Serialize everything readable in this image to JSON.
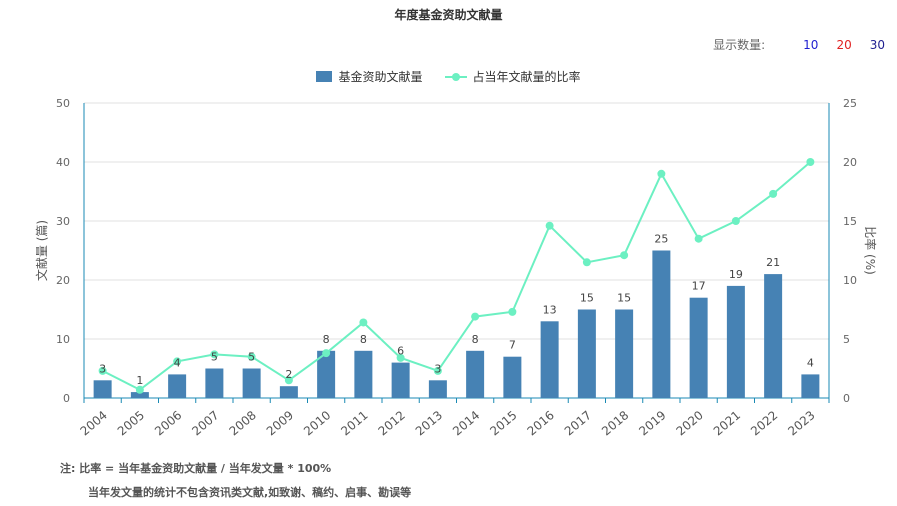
{
  "title": "年度基金资助文献量",
  "count_selector": {
    "label": "显示数量:",
    "options": [
      {
        "label": "10",
        "color": "#1f1fd0"
      },
      {
        "label": "20",
        "color": "#e02020"
      },
      {
        "label": "30",
        "color": "#1f1f90"
      }
    ]
  },
  "legend": {
    "bar_label": "基金资助文献量",
    "line_label": "占当年文献量的比率"
  },
  "colors": {
    "bar": "#4682b4",
    "line": "#6cf0c2",
    "axis": "#1a8ab4",
    "grid": "#e0e0e0"
  },
  "notes": {
    "line1": "注:  比率 = 当年基金资助文献量 / 当年发文量 * 100%",
    "line2": "当年发文量的统计不包含资讯类文献,如致谢、稿约、启事、勘误等"
  },
  "chart_data": {
    "type": "bar",
    "categories": [
      "2004",
      "2005",
      "2006",
      "2007",
      "2008",
      "2009",
      "2010",
      "2011",
      "2012",
      "2013",
      "2014",
      "2015",
      "2016",
      "2017",
      "2018",
      "2019",
      "2020",
      "2021",
      "2022",
      "2023"
    ],
    "series": [
      {
        "name": "基金资助文献量",
        "type": "bar",
        "axis": "left",
        "values": [
          3,
          1,
          4,
          5,
          5,
          2,
          8,
          8,
          6,
          3,
          8,
          7,
          13,
          15,
          15,
          25,
          17,
          19,
          21,
          4
        ]
      },
      {
        "name": "占当年文献量的比率",
        "type": "line",
        "axis": "right",
        "values": [
          2.3,
          0.7,
          3.1,
          3.7,
          3.5,
          1.5,
          3.8,
          6.4,
          3.4,
          2.3,
          6.9,
          7.3,
          14.6,
          11.5,
          12.1,
          19.0,
          13.5,
          15.0,
          17.3,
          20.0
        ]
      }
    ],
    "ylabel": "文献量 (篇)",
    "y2label": "比率 (%)",
    "ylim": [
      0,
      50
    ],
    "y2lim": [
      0,
      25
    ],
    "yticks": [
      0,
      10,
      20,
      30,
      40,
      50
    ],
    "y2ticks": [
      0,
      5,
      10,
      15,
      20,
      25
    ],
    "grid": true,
    "legend_position": "top-center"
  }
}
